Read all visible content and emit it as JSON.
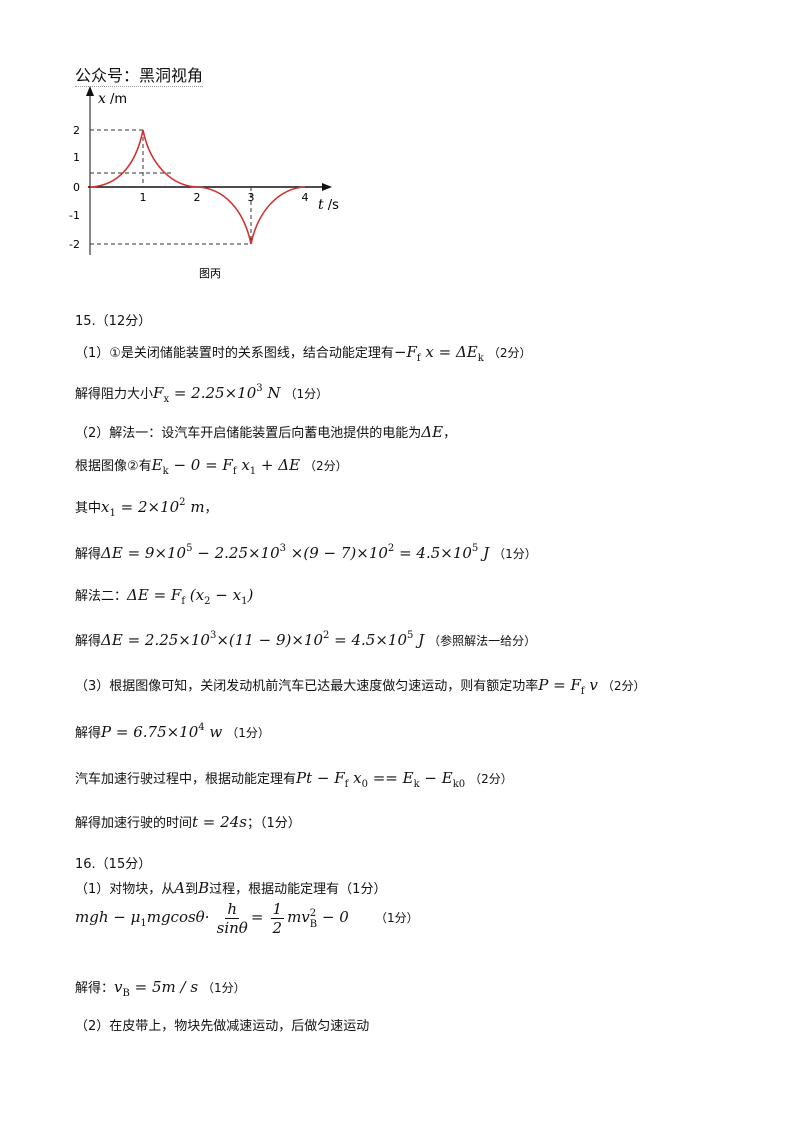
{
  "header": "公众号：黑洞视角",
  "figure": {
    "y_label": [
      "x",
      " /m"
    ],
    "x_label": [
      "t",
      " /s"
    ],
    "y_ticks": [
      "2",
      "1",
      "0",
      "-1",
      "-2"
    ],
    "x_ticks": [
      "1",
      "2",
      "3",
      "4"
    ],
    "caption": "图丙"
  },
  "lines": [
    [
      "15.（12分）"
    ],
    [
      "（1）①是关闭储能装置时的关系图线，结合动能定理有",
      "−F",
      "f",
      " x = ΔE",
      "k",
      "（2分）"
    ],
    [
      "解得阻力大小",
      "F",
      "x",
      " = 2.25×10",
      "3",
      " N",
      "（1分）"
    ],
    [
      "（2）解法一：设汽车开启储能装置后向蓄电池提供的电能为",
      "ΔE",
      "，"
    ],
    [
      "根据图像②有",
      "E",
      "k",
      " − 0 = F",
      "f",
      " x",
      "1",
      " + ΔE",
      "（2分）"
    ],
    [
      "其中",
      "x",
      "1",
      " = 2×10",
      "2",
      " m",
      "，"
    ],
    [
      "解得",
      "ΔE = 9×10",
      "5",
      " − 2.25×10",
      "3",
      " ×(9 − 7)×10",
      "2",
      " = 4.5×10",
      "5",
      " J",
      "（1分）"
    ],
    [
      "解法二：",
      "ΔE = F",
      "f",
      " (x",
      "2",
      " − x",
      "1",
      ")"
    ],
    [
      "解得",
      "ΔE = 2.25×10",
      "3",
      "×(11 − 9)×10",
      "2",
      " = 4.5×10",
      "5",
      " J",
      "（参照解法一给分）"
    ],
    [
      "（3）根据图像可知，关闭发动机前汽车已达最大速度做匀速运动，则有额定功率",
      "P = F",
      "f",
      " v",
      "（2分）"
    ],
    [
      "解得",
      "P = 6.75×10",
      "4",
      " w",
      "（1分）"
    ],
    [
      "汽车加速行驶过程中，根据动能定理有",
      "Pt − F",
      "f",
      " x",
      "0",
      " == E",
      "k",
      " − E",
      "k0",
      "（2分）"
    ],
    [
      "解得加速行驶的时间",
      "t = 24s",
      "；（1分）"
    ],
    [
      "16.（15分）"
    ],
    [
      "（1）对物块，从",
      "A",
      "到",
      "B",
      "过程，根据动能定理有（1分）"
    ],
    [
      "mgh − μ",
      "1",
      "mgcosθ·",
      "h",
      "sinθ",
      "=",
      "1",
      "2",
      "mv",
      "B",
      "2",
      " − 0",
      "（1分）"
    ],
    [
      "解得：",
      "v",
      "B",
      " = 5m / s",
      "（1分）"
    ],
    [
      "（2）在皮带上，物块先做减速运动，后做匀速运动"
    ]
  ]
}
